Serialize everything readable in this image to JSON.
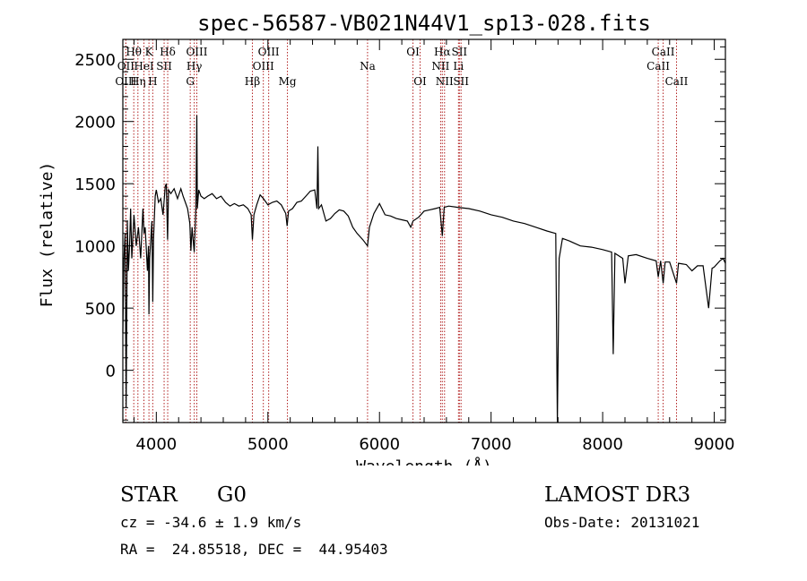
{
  "chart_data": {
    "type": "line",
    "title": "spec-56587-VB021N44V1_sp13-028.fits",
    "xlabel": "Wavelength (Å)",
    "ylabel": "Flux (relative)",
    "xlim": [
      3700,
      9100
    ],
    "ylim": [
      -420,
      2660
    ],
    "xticks": [
      4000,
      5000,
      6000,
      7000,
      8000,
      9000
    ],
    "yticks": [
      0,
      500,
      1000,
      1500,
      2000,
      2500
    ],
    "x_minor_step": 200,
    "y_minor_step": 100,
    "grid": false,
    "series": [
      {
        "name": "flux",
        "points": [
          [
            3700,
            300
          ],
          [
            3710,
            900
          ],
          [
            3720,
            1100
          ],
          [
            3730,
            -300
          ],
          [
            3740,
            1200
          ],
          [
            3750,
            800
          ],
          [
            3760,
            1000
          ],
          [
            3770,
            1300
          ],
          [
            3780,
            900
          ],
          [
            3800,
            1250
          ],
          [
            3820,
            1000
          ],
          [
            3840,
            1150
          ],
          [
            3860,
            900
          ],
          [
            3880,
            1300
          ],
          [
            3890,
            1100
          ],
          [
            3900,
            1150
          ],
          [
            3920,
            800
          ],
          [
            3930,
            1000
          ],
          [
            3934,
            450
          ],
          [
            3940,
            900
          ],
          [
            3960,
            1200
          ],
          [
            3968,
            550
          ],
          [
            3975,
            1050
          ],
          [
            3990,
            1400
          ],
          [
            4000,
            1450
          ],
          [
            4020,
            1350
          ],
          [
            4040,
            1380
          ],
          [
            4060,
            1250
          ],
          [
            4080,
            1480
          ],
          [
            4090,
            1500
          ],
          [
            4101,
            1050
          ],
          [
            4110,
            1450
          ],
          [
            4130,
            1420
          ],
          [
            4160,
            1460
          ],
          [
            4190,
            1380
          ],
          [
            4220,
            1460
          ],
          [
            4240,
            1400
          ],
          [
            4260,
            1350
          ],
          [
            4280,
            1300
          ],
          [
            4300,
            1180
          ],
          [
            4310,
            960
          ],
          [
            4320,
            1150
          ],
          [
            4340,
            950
          ],
          [
            4355,
            1300
          ],
          [
            4363,
            2050
          ],
          [
            4368,
            1300
          ],
          [
            4380,
            1450
          ],
          [
            4400,
            1400
          ],
          [
            4430,
            1380
          ],
          [
            4460,
            1400
          ],
          [
            4500,
            1420
          ],
          [
            4540,
            1380
          ],
          [
            4580,
            1400
          ],
          [
            4620,
            1350
          ],
          [
            4660,
            1320
          ],
          [
            4700,
            1340
          ],
          [
            4740,
            1320
          ],
          [
            4780,
            1330
          ],
          [
            4820,
            1300
          ],
          [
            4850,
            1250
          ],
          [
            4861,
            1050
          ],
          [
            4875,
            1250
          ],
          [
            4900,
            1330
          ],
          [
            4930,
            1410
          ],
          [
            4960,
            1380
          ],
          [
            5000,
            1330
          ],
          [
            5040,
            1350
          ],
          [
            5080,
            1360
          ],
          [
            5120,
            1330
          ],
          [
            5160,
            1260
          ],
          [
            5172,
            1160
          ],
          [
            5185,
            1280
          ],
          [
            5220,
            1300
          ],
          [
            5260,
            1350
          ],
          [
            5300,
            1360
          ],
          [
            5340,
            1400
          ],
          [
            5380,
            1440
          ],
          [
            5420,
            1450
          ],
          [
            5440,
            1300
          ],
          [
            5448,
            1800
          ],
          [
            5455,
            1300
          ],
          [
            5480,
            1330
          ],
          [
            5520,
            1200
          ],
          [
            5560,
            1220
          ],
          [
            5600,
            1260
          ],
          [
            5640,
            1290
          ],
          [
            5680,
            1280
          ],
          [
            5720,
            1240
          ],
          [
            5760,
            1150
          ],
          [
            5800,
            1100
          ],
          [
            5850,
            1050
          ],
          [
            5893,
            1000
          ],
          [
            5910,
            1150
          ],
          [
            5950,
            1260
          ],
          [
            6000,
            1340
          ],
          [
            6050,
            1250
          ],
          [
            6100,
            1240
          ],
          [
            6150,
            1220
          ],
          [
            6200,
            1210
          ],
          [
            6250,
            1200
          ],
          [
            6280,
            1150
          ],
          [
            6300,
            1200
          ],
          [
            6350,
            1230
          ],
          [
            6400,
            1280
          ],
          [
            6450,
            1290
          ],
          [
            6500,
            1300
          ],
          [
            6540,
            1310
          ],
          [
            6563,
            1080
          ],
          [
            6580,
            1310
          ],
          [
            6620,
            1320
          ],
          [
            6700,
            1310
          ],
          [
            6800,
            1300
          ],
          [
            6900,
            1280
          ],
          [
            7000,
            1250
          ],
          [
            7100,
            1230
          ],
          [
            7200,
            1200
          ],
          [
            7300,
            1180
          ],
          [
            7400,
            1150
          ],
          [
            7500,
            1120
          ],
          [
            7580,
            1100
          ],
          [
            7594,
            -420
          ],
          [
            7610,
            900
          ],
          [
            7640,
            1060
          ],
          [
            7700,
            1040
          ],
          [
            7800,
            1000
          ],
          [
            7900,
            990
          ],
          [
            8000,
            970
          ],
          [
            8080,
            950
          ],
          [
            8095,
            130
          ],
          [
            8110,
            940
          ],
          [
            8180,
            900
          ],
          [
            8200,
            700
          ],
          [
            8230,
            920
          ],
          [
            8300,
            930
          ],
          [
            8400,
            900
          ],
          [
            8480,
            880
          ],
          [
            8498,
            750
          ],
          [
            8520,
            880
          ],
          [
            8542,
            700
          ],
          [
            8560,
            870
          ],
          [
            8600,
            870
          ],
          [
            8662,
            700
          ],
          [
            8680,
            860
          ],
          [
            8750,
            850
          ],
          [
            8800,
            800
          ],
          [
            8850,
            840
          ],
          [
            8900,
            840
          ],
          [
            8950,
            500
          ],
          [
            8980,
            820
          ],
          [
            9000,
            830
          ],
          [
            9050,
            880
          ],
          [
            9080,
            900
          ],
          [
            9100,
            860
          ]
        ]
      }
    ],
    "lines": [
      {
        "label": "Hθ",
        "x": 3798,
        "row": 1
      },
      {
        "label": "OII",
        "x": 3727,
        "row": 2
      },
      {
        "label": "OIII",
        "x": 3727,
        "row": 3
      },
      {
        "label": "K",
        "x": 3934,
        "row": 1
      },
      {
        "label": "HeI",
        "x": 3889,
        "row": 2
      },
      {
        "label": "Hη",
        "x": 3835,
        "row": 3
      },
      {
        "label": "SII",
        "x": 4070,
        "row": 2
      },
      {
        "label": "H",
        "x": 3968,
        "row": 3
      },
      {
        "label": "Hδ",
        "x": 4102,
        "row": 1
      },
      {
        "label": "OIII",
        "x": 4363,
        "row": 1
      },
      {
        "label": "Hγ",
        "x": 4340,
        "row": 2
      },
      {
        "label": "G",
        "x": 4304,
        "row": 3
      },
      {
        "label": "OIII",
        "x": 5007,
        "row": 1
      },
      {
        "label": "OIII",
        "x": 4959,
        "row": 2
      },
      {
        "label": "Hβ",
        "x": 4861,
        "row": 3
      },
      {
        "label": "Mg",
        "x": 5175,
        "row": 3
      },
      {
        "label": "Na",
        "x": 5893,
        "row": 2
      },
      {
        "label": "OI",
        "x": 6300,
        "row": 1
      },
      {
        "label": "OI",
        "x": 6364,
        "row": 3
      },
      {
        "label": "Hα",
        "x": 6563,
        "row": 1
      },
      {
        "label": "SII",
        "x": 6716,
        "row": 1
      },
      {
        "label": "NII",
        "x": 6548,
        "row": 2
      },
      {
        "label": "Li",
        "x": 6708,
        "row": 2
      },
      {
        "label": "NII",
        "x": 6583,
        "row": 3
      },
      {
        "label": "SII",
        "x": 6731,
        "row": 3
      },
      {
        "label": "CaII",
        "x": 8542,
        "row": 1
      },
      {
        "label": "CaII",
        "x": 8498,
        "row": 2
      },
      {
        "label": "CaII",
        "x": 8662,
        "row": 3
      }
    ]
  },
  "info": {
    "class": "STAR",
    "subclass": "G0",
    "survey": "LAMOST DR3",
    "cz": "cz = -34.6 ± 1.9 km/s",
    "obs_date": "Obs-Date: 20131021",
    "coords": "RA =  24.85518, DEC =  44.95403"
  },
  "colors": {
    "axes": "#000000",
    "flux": "#000000",
    "line_marker": "#b22222"
  }
}
